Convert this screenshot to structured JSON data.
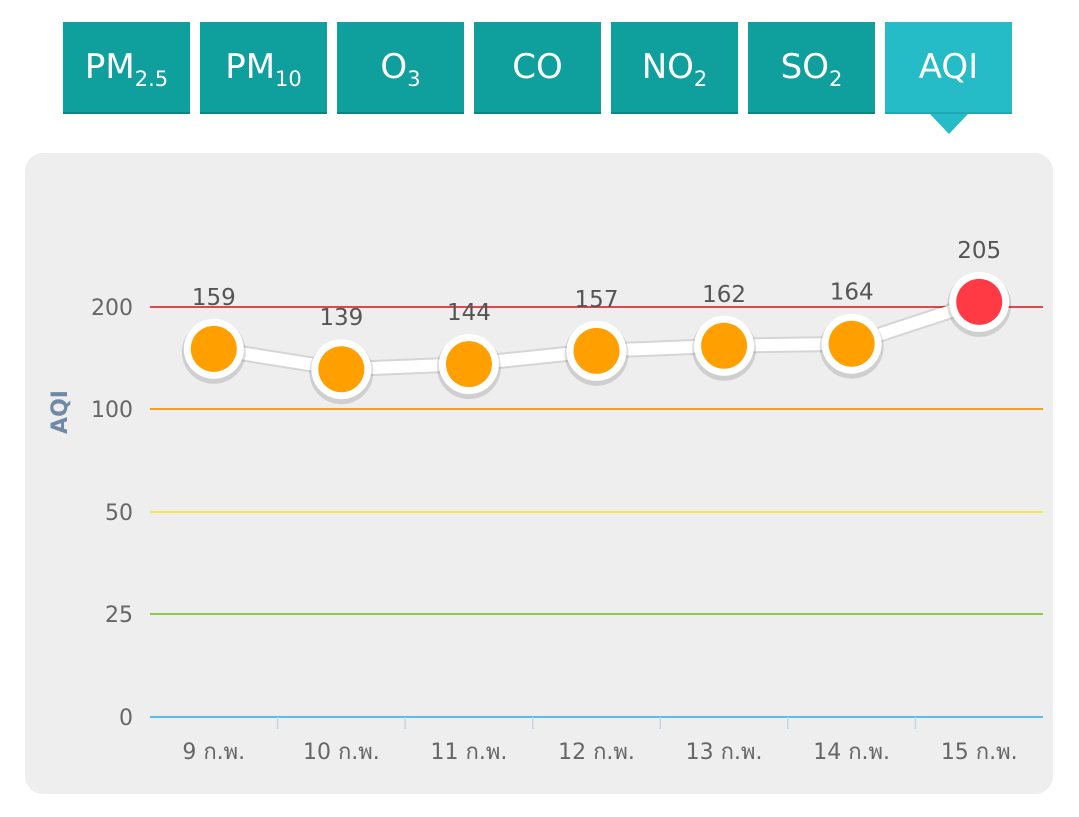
{
  "tabs": [
    {
      "main": "PM",
      "sub": "2.5",
      "active": false
    },
    {
      "main": "PM",
      "sub": "10",
      "active": false
    },
    {
      "main": "O",
      "sub": "3",
      "active": false
    },
    {
      "main": "CO",
      "sub": "",
      "active": false
    },
    {
      "main": "NO",
      "sub": "2",
      "active": false
    },
    {
      "main": "SO",
      "sub": "2",
      "active": false
    },
    {
      "main": "AQI",
      "sub": "",
      "active": true
    }
  ],
  "colors": {
    "tab": "#0f9f9d",
    "tab_active": "#25bcc8",
    "point_orange": "#ffa000",
    "point_red": "#ff3a45",
    "line": "#ffffff"
  },
  "chart_data": {
    "type": "line",
    "title": "",
    "xlabel": "",
    "ylabel": "AQI",
    "categories": [
      "9 ก.พ.",
      "10 ก.พ.",
      "11 ก.พ.",
      "12 ก.พ.",
      "13 ก.พ.",
      "14 ก.พ.",
      "15 ก.พ."
    ],
    "series": [
      {
        "values": [
          159,
          139,
          144,
          157,
          162,
          164,
          205
        ]
      }
    ],
    "point_colors": [
      "#ffa000",
      "#ffa000",
      "#ffa000",
      "#ffa000",
      "#ffa000",
      "#ffa000",
      "#ff3a45"
    ],
    "y_ticks": [
      0,
      25,
      50,
      100,
      200
    ],
    "y_tick_labels": [
      "0",
      "25",
      "50",
      "100",
      "200"
    ],
    "threshold_colors": [
      "#5bbcec",
      "#8dcb45",
      "#f5e849",
      "#f5a023",
      "#e0474a"
    ],
    "scale": "piecewise linear between ticks",
    "ylim": [
      0,
      200
    ],
    "grid": true,
    "legend": "none"
  }
}
